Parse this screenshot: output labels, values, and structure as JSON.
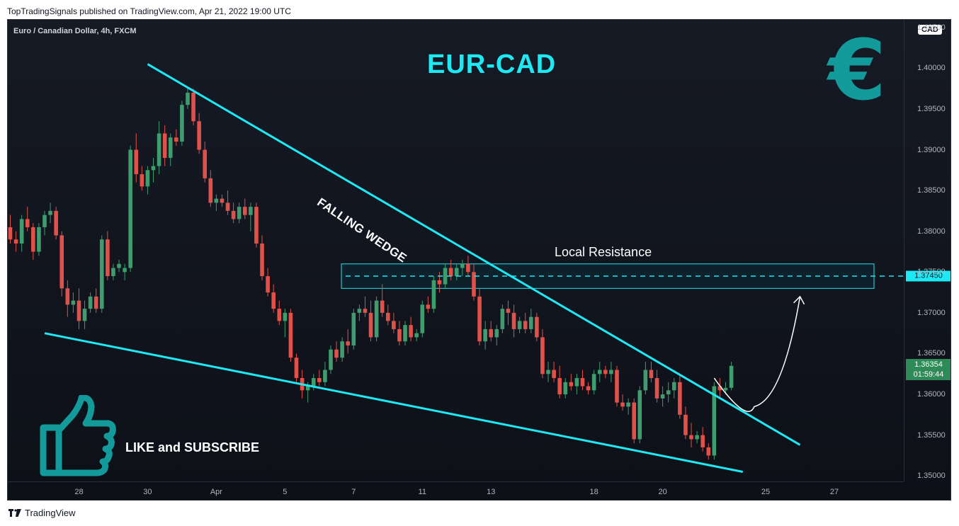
{
  "publisher_line": "TopTradingSignals published on TradingView.com, Apr 21, 2022 19:00 UTC",
  "symbol": "Euro / Canadian Dollar, 4h, FXCM",
  "currency_badge": "CAD",
  "chart_title": "EUR-CAD",
  "wedge_label": "FALLING WEDGE",
  "resistance_label": "Local Resistance",
  "resistance_price": "1.37450",
  "last_price": "1.36354",
  "countdown": "01:59:44",
  "like_text": "LIKE and SUBSCRIBE",
  "euro_symbol": "€",
  "footer_brand": "TradingView",
  "colors": {
    "up": "#3e9c6e",
    "down": "#e2504a",
    "accent": "#1de9f4",
    "euro": "#139b9b"
  },
  "icons": [
    "euro-icon",
    "thumbs-up-icon",
    "tradingview-logo-icon"
  ],
  "chart_data": {
    "type": "candlestick",
    "title": "EUR-CAD",
    "symbol": "Euro / Canadian Dollar, 4h, FXCM",
    "ylim": [
      1.3495,
      1.4055
    ],
    "yticks": [
      "1.35000",
      "1.35500",
      "1.36000",
      "1.36500",
      "1.37000",
      "1.37500",
      "1.38000",
      "1.38500",
      "1.39000",
      "1.39500",
      "1.40000",
      "1.40500"
    ],
    "xtick_labels": [
      {
        "label": "28",
        "i": 12
      },
      {
        "label": "30",
        "i": 24
      },
      {
        "label": "Apr",
        "i": 36
      },
      {
        "label": "5",
        "i": 48
      },
      {
        "label": "7",
        "i": 60
      },
      {
        "label": "11",
        "i": 72
      },
      {
        "label": "13",
        "i": 84
      },
      {
        "label": "18",
        "i": 102
      },
      {
        "label": "20",
        "i": 114
      },
      {
        "label": "25",
        "i": 132
      },
      {
        "label": "27",
        "i": 144
      }
    ],
    "candles": [
      [
        1.3805,
        1.382,
        1.3785,
        1.379
      ],
      [
        1.379,
        1.38,
        1.3775,
        1.3785
      ],
      [
        1.3785,
        1.382,
        1.3775,
        1.3815
      ],
      [
        1.3815,
        1.383,
        1.38,
        1.3805
      ],
      [
        1.3805,
        1.381,
        1.3765,
        1.3775
      ],
      [
        1.3775,
        1.381,
        1.377,
        1.3805
      ],
      [
        1.3805,
        1.3825,
        1.3795,
        1.382
      ],
      [
        1.382,
        1.3835,
        1.381,
        1.3825
      ],
      [
        1.3825,
        1.383,
        1.379,
        1.3795
      ],
      [
        1.3795,
        1.38,
        1.372,
        1.373
      ],
      [
        1.373,
        1.374,
        1.3695,
        1.371
      ],
      [
        1.371,
        1.3725,
        1.37,
        1.3715
      ],
      [
        1.3715,
        1.373,
        1.368,
        1.369
      ],
      [
        1.369,
        1.3715,
        1.368,
        1.3705
      ],
      [
        1.3705,
        1.3725,
        1.37,
        1.372
      ],
      [
        1.372,
        1.373,
        1.37,
        1.3705
      ],
      [
        1.3705,
        1.3795,
        1.37,
        1.379
      ],
      [
        1.379,
        1.38,
        1.374,
        1.3745
      ],
      [
        1.3745,
        1.376,
        1.374,
        1.3755
      ],
      [
        1.3755,
        1.3765,
        1.375,
        1.376
      ],
      [
        1.375,
        1.376,
        1.374,
        1.3755
      ],
      [
        1.3755,
        1.3905,
        1.375,
        1.39
      ],
      [
        1.39,
        1.392,
        1.386,
        1.387
      ],
      [
        1.387,
        1.388,
        1.385,
        1.3855
      ],
      [
        1.3855,
        1.388,
        1.3845,
        1.3875
      ],
      [
        1.3875,
        1.389,
        1.386,
        1.388
      ],
      [
        1.388,
        1.3935,
        1.387,
        1.392
      ],
      [
        1.392,
        1.393,
        1.388,
        1.389
      ],
      [
        1.389,
        1.392,
        1.388,
        1.3915
      ],
      [
        1.3915,
        1.3925,
        1.3905,
        1.391
      ],
      [
        1.391,
        1.396,
        1.3905,
        1.3955
      ],
      [
        1.3955,
        1.3975,
        1.395,
        1.397
      ],
      [
        1.397,
        1.3975,
        1.393,
        1.3935
      ],
      [
        1.3935,
        1.3945,
        1.3895,
        1.39
      ],
      [
        1.39,
        1.391,
        1.386,
        1.3865
      ],
      [
        1.3865,
        1.3875,
        1.383,
        1.3835
      ],
      [
        1.3835,
        1.3845,
        1.3825,
        1.384
      ],
      [
        1.384,
        1.3845,
        1.383,
        1.3835
      ],
      [
        1.3835,
        1.385,
        1.382,
        1.3825
      ],
      [
        1.3825,
        1.3835,
        1.381,
        1.3815
      ],
      [
        1.3815,
        1.3835,
        1.381,
        1.383
      ],
      [
        1.383,
        1.384,
        1.3815,
        1.382
      ],
      [
        1.382,
        1.3835,
        1.38,
        1.383
      ],
      [
        1.383,
        1.3835,
        1.378,
        1.3785
      ],
      [
        1.3785,
        1.3795,
        1.374,
        1.3745
      ],
      [
        1.3745,
        1.3755,
        1.372,
        1.3725
      ],
      [
        1.3725,
        1.3735,
        1.37,
        1.3705
      ],
      [
        1.3705,
        1.3715,
        1.3685,
        1.369
      ],
      [
        1.369,
        1.3705,
        1.367,
        1.37
      ],
      [
        1.37,
        1.3705,
        1.364,
        1.3645
      ],
      [
        1.3645,
        1.365,
        1.3615,
        1.362
      ],
      [
        1.362,
        1.363,
        1.3595,
        1.3605
      ],
      [
        1.3605,
        1.3615,
        1.359,
        1.361
      ],
      [
        1.361,
        1.3625,
        1.3605,
        1.362
      ],
      [
        1.362,
        1.363,
        1.361,
        1.3615
      ],
      [
        1.3615,
        1.364,
        1.361,
        1.363
      ],
      [
        1.363,
        1.366,
        1.3625,
        1.3655
      ],
      [
        1.3655,
        1.3665,
        1.364,
        1.3645
      ],
      [
        1.3645,
        1.367,
        1.364,
        1.3665
      ],
      [
        1.3665,
        1.368,
        1.365,
        1.366
      ],
      [
        1.366,
        1.3705,
        1.3655,
        1.37
      ],
      [
        1.37,
        1.371,
        1.369,
        1.3705
      ],
      [
        1.3705,
        1.372,
        1.3695,
        1.37
      ],
      [
        1.37,
        1.3715,
        1.3665,
        1.367
      ],
      [
        1.367,
        1.372,
        1.3665,
        1.3715
      ],
      [
        1.3715,
        1.3735,
        1.3695,
        1.37
      ],
      [
        1.37,
        1.371,
        1.3685,
        1.369
      ],
      [
        1.369,
        1.37,
        1.3675,
        1.368
      ],
      [
        1.368,
        1.369,
        1.366,
        1.3665
      ],
      [
        1.3665,
        1.369,
        1.366,
        1.3685
      ],
      [
        1.3685,
        1.3695,
        1.3665,
        1.367
      ],
      [
        1.367,
        1.368,
        1.3665,
        1.3675
      ],
      [
        1.3675,
        1.3715,
        1.367,
        1.371
      ],
      [
        1.371,
        1.372,
        1.37,
        1.3705
      ],
      [
        1.3705,
        1.3745,
        1.37,
        1.374
      ],
      [
        1.374,
        1.375,
        1.3725,
        1.3735
      ],
      [
        1.3735,
        1.376,
        1.373,
        1.3755
      ],
      [
        1.3755,
        1.3765,
        1.374,
        1.3745
      ],
      [
        1.3745,
        1.376,
        1.374,
        1.3755
      ],
      [
        1.3755,
        1.3765,
        1.3745,
        1.376
      ],
      [
        1.376,
        1.377,
        1.3745,
        1.375
      ],
      [
        1.375,
        1.376,
        1.3715,
        1.372
      ],
      [
        1.372,
        1.373,
        1.366,
        1.3665
      ],
      [
        1.3665,
        1.369,
        1.3655,
        1.368
      ],
      [
        1.368,
        1.369,
        1.3665,
        1.367
      ],
      [
        1.367,
        1.3685,
        1.366,
        1.368
      ],
      [
        1.368,
        1.371,
        1.3675,
        1.3705
      ],
      [
        1.3705,
        1.3715,
        1.3685,
        1.37
      ],
      [
        1.37,
        1.371,
        1.367,
        1.368
      ],
      [
        1.368,
        1.3695,
        1.3675,
        1.369
      ],
      [
        1.369,
        1.37,
        1.3675,
        1.368
      ],
      [
        1.368,
        1.3705,
        1.3675,
        1.3695
      ],
      [
        1.3695,
        1.37,
        1.3665,
        1.367
      ],
      [
        1.367,
        1.368,
        1.362,
        1.3625
      ],
      [
        1.3625,
        1.364,
        1.3615,
        1.363
      ],
      [
        1.363,
        1.364,
        1.3615,
        1.362
      ],
      [
        1.362,
        1.3635,
        1.3595,
        1.36
      ],
      [
        1.36,
        1.362,
        1.3595,
        1.3615
      ],
      [
        1.3615,
        1.3625,
        1.3605,
        1.361
      ],
      [
        1.361,
        1.3625,
        1.36,
        1.362
      ],
      [
        1.362,
        1.363,
        1.3605,
        1.361
      ],
      [
        1.361,
        1.3615,
        1.36,
        1.3605
      ],
      [
        1.3605,
        1.363,
        1.36,
        1.3625
      ],
      [
        1.3625,
        1.364,
        1.3615,
        1.363
      ],
      [
        1.363,
        1.3635,
        1.362,
        1.3625
      ],
      [
        1.3625,
        1.364,
        1.3615,
        1.363
      ],
      [
        1.363,
        1.3635,
        1.3585,
        1.359
      ],
      [
        1.359,
        1.36,
        1.358,
        1.3585
      ],
      [
        1.3585,
        1.3595,
        1.3575,
        1.359
      ],
      [
        1.359,
        1.3595,
        1.354,
        1.3545
      ],
      [
        1.3545,
        1.361,
        1.354,
        1.3605
      ],
      [
        1.3605,
        1.364,
        1.36,
        1.363
      ],
      [
        1.363,
        1.364,
        1.3615,
        1.362
      ],
      [
        1.362,
        1.363,
        1.359,
        1.3595
      ],
      [
        1.3595,
        1.361,
        1.3585,
        1.36
      ],
      [
        1.36,
        1.3615,
        1.359,
        1.3605
      ],
      [
        1.3605,
        1.362,
        1.3595,
        1.3615
      ],
      [
        1.3615,
        1.3625,
        1.357,
        1.3575
      ],
      [
        1.3575,
        1.3585,
        1.3545,
        1.355
      ],
      [
        1.355,
        1.3565,
        1.3535,
        1.3545
      ],
      [
        1.3545,
        1.3555,
        1.354,
        1.355
      ],
      [
        1.355,
        1.356,
        1.353,
        1.3535
      ],
      [
        1.3535,
        1.354,
        1.352,
        1.3525
      ],
      [
        1.3525,
        1.3615,
        1.352,
        1.361
      ],
      [
        1.361,
        1.362,
        1.3595,
        1.3605
      ],
      [
        1.3605,
        1.3615,
        1.36,
        1.3608
      ],
      [
        1.3608,
        1.364,
        1.3605,
        1.3635
      ]
    ],
    "resistance_level": 1.3745,
    "resistance_zone": [
      1.373,
      1.376
    ],
    "falling_wedge": {
      "upper_line": [
        [
          24.0,
          1.4005
        ],
        [
          138.0,
          1.3538
        ]
      ],
      "lower_line": [
        [
          6.0,
          1.3675
        ],
        [
          128.0,
          1.3505
        ]
      ]
    },
    "projection_arrow": [
      [
        123,
        1.362
      ],
      [
        130,
        1.3585
      ],
      [
        138,
        1.372
      ]
    ]
  }
}
